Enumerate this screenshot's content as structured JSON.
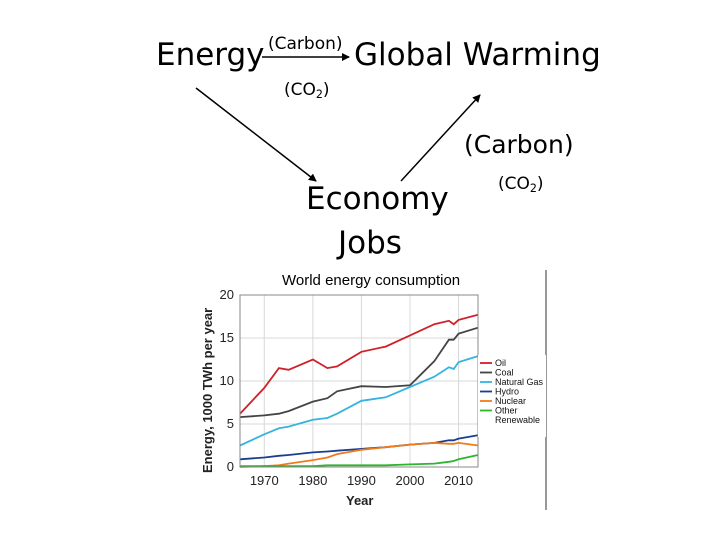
{
  "diagram": {
    "energy_label": "Energy",
    "global_warming_label": "Global Warming",
    "arrow_top_label": "(Carbon)",
    "arrow_bottom_label_pre": "(CO",
    "arrow_bottom_label_sub": "2",
    "arrow_bottom_label_post": ")",
    "economy_label": "Economy",
    "jobs_label": "Jobs",
    "right_carbon_label": "(Carbon)",
    "right_co2_pre": "(CO",
    "right_co2_sub": "2",
    "right_co2_post": ")"
  },
  "chart_data": {
    "type": "line",
    "title": "World energy consumption",
    "xlabel": "Year",
    "ylabel": "Energy, 1000 TWh per year",
    "xlim": [
      1965,
      2014
    ],
    "ylim": [
      0,
      20
    ],
    "xticks": [
      1970,
      1980,
      1990,
      2000,
      2010
    ],
    "yticks": [
      0,
      5,
      10,
      15,
      20
    ],
    "grid": true,
    "legend_position": "right",
    "x": [
      1965,
      1970,
      1973,
      1975,
      1980,
      1983,
      1985,
      1990,
      1995,
      2000,
      2005,
      2008,
      2009,
      2010,
      2014
    ],
    "series": [
      {
        "name": "Oil",
        "color": "#d0202a",
        "values": [
          6.2,
          9.2,
          11.5,
          11.3,
          12.5,
          11.5,
          11.7,
          13.4,
          14.0,
          15.3,
          16.6,
          17.0,
          16.6,
          17.1,
          17.7
        ]
      },
      {
        "name": "Coal",
        "color": "#444444",
        "values": [
          5.8,
          6.0,
          6.2,
          6.5,
          7.6,
          8.0,
          8.8,
          9.4,
          9.3,
          9.5,
          12.3,
          14.8,
          14.8,
          15.5,
          16.2
        ]
      },
      {
        "name": "Natural Gas",
        "color": "#35b4e0",
        "values": [
          2.5,
          3.8,
          4.5,
          4.7,
          5.5,
          5.7,
          6.2,
          7.7,
          8.1,
          9.3,
          10.5,
          11.6,
          11.4,
          12.2,
          12.9
        ]
      },
      {
        "name": "Hydro",
        "color": "#1a3f8f",
        "values": [
          0.9,
          1.1,
          1.3,
          1.4,
          1.7,
          1.8,
          1.9,
          2.1,
          2.3,
          2.6,
          2.8,
          3.1,
          3.1,
          3.3,
          3.7
        ]
      },
      {
        "name": "Nuclear",
        "color": "#f07b1a",
        "values": [
          0.0,
          0.1,
          0.2,
          0.4,
          0.8,
          1.1,
          1.5,
          2.0,
          2.3,
          2.6,
          2.8,
          2.7,
          2.7,
          2.8,
          2.5
        ]
      },
      {
        "name": "Other Renewable",
        "color": "#2db52d",
        "values": [
          0.1,
          0.1,
          0.1,
          0.1,
          0.1,
          0.2,
          0.2,
          0.2,
          0.2,
          0.3,
          0.4,
          0.6,
          0.7,
          0.9,
          1.4
        ]
      }
    ]
  }
}
